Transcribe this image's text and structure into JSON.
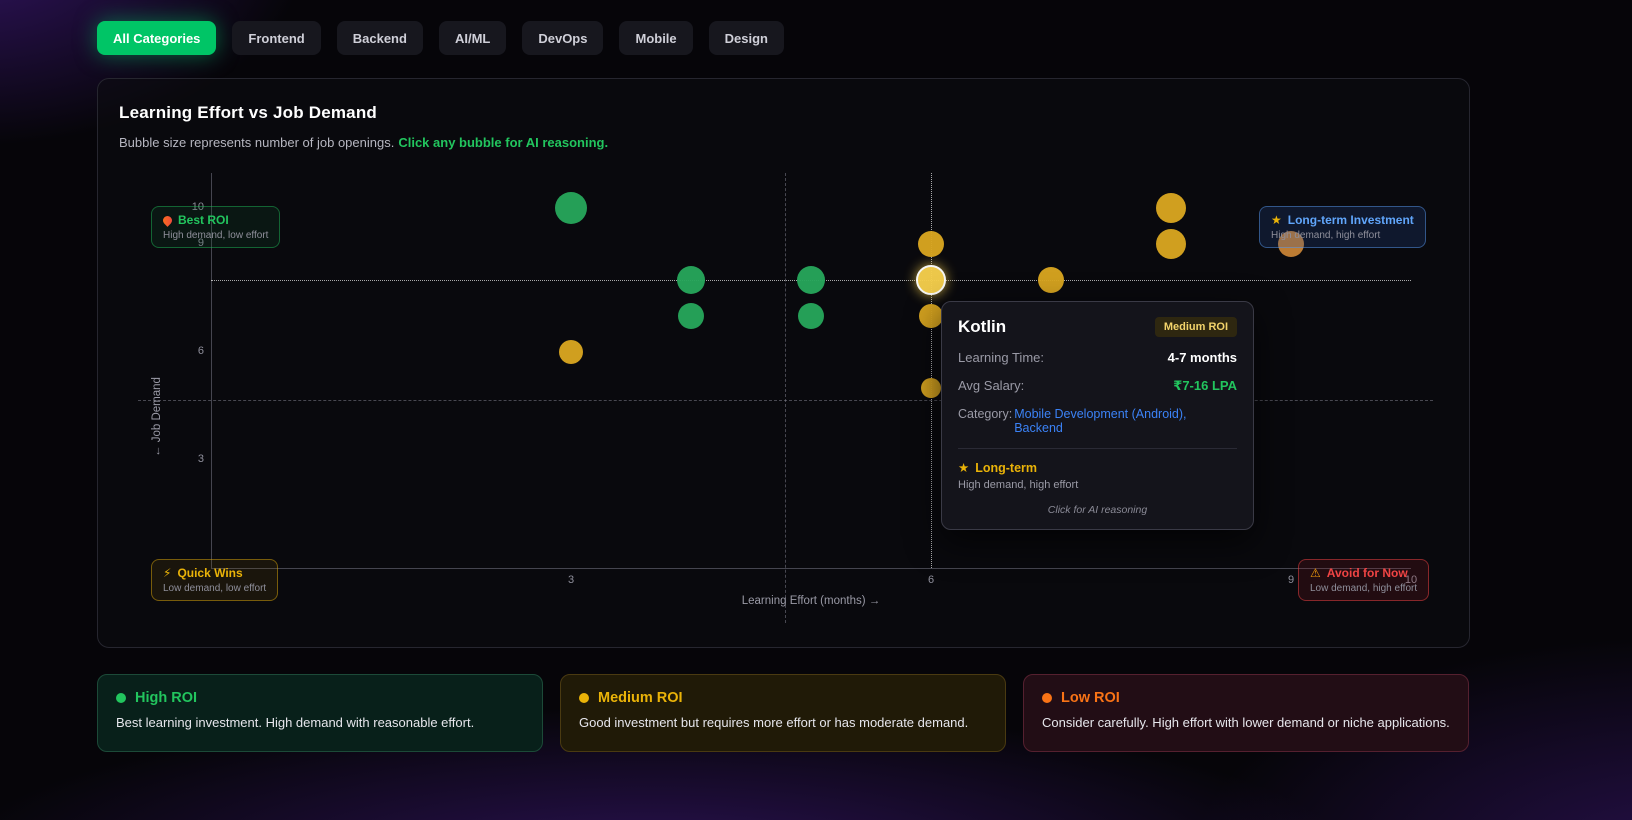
{
  "filters": {
    "items": [
      {
        "label": "All Categories",
        "active": true
      },
      {
        "label": "Frontend",
        "active": false
      },
      {
        "label": "Backend",
        "active": false
      },
      {
        "label": "AI/ML",
        "active": false
      },
      {
        "label": "DevOps",
        "active": false
      },
      {
        "label": "Mobile",
        "active": false
      },
      {
        "label": "Design",
        "active": false
      }
    ],
    "active_color": "#00c566"
  },
  "chart": {
    "title": "Learning Effort vs Job Demand",
    "subtitle": "Bubble size represents number of job openings.",
    "subtitle_highlight": "Click any bubble for AI reasoning.",
    "quadrants": {
      "best": {
        "icon": "flame",
        "title": "Best ROI",
        "subtitle": "High demand, low effort",
        "color": "#22c55e"
      },
      "longterm": {
        "icon": "star",
        "title": "Long-term Investment",
        "subtitle": "High demand, high effort",
        "color": "#60a5fa"
      },
      "quick": {
        "icon": "bolt",
        "title": "Quick Wins",
        "subtitle": "Low demand, low effort",
        "color": "#eab308"
      },
      "avoid": {
        "icon": "warning",
        "title": "Avoid for Now",
        "subtitle": "Low demand, high effort",
        "color": "#ef4444"
      }
    },
    "tooltip": {
      "title": "Kotlin",
      "badge": "Medium ROI",
      "rows": [
        {
          "label": "Learning Time:",
          "value": "4-7 months",
          "color": "#ffffff",
          "split": true
        },
        {
          "label": "Avg Salary:",
          "value": "₹7-16 LPA",
          "color": "#22c55e",
          "split": true
        },
        {
          "label": "Category:",
          "value": "Mobile Development (Android), Backend",
          "color": "#3b82f6",
          "split": false
        }
      ],
      "verdict_icon": "star",
      "verdict": "Long-term",
      "verdict_sub": "High demand, high effort",
      "footer": "Click for AI reasoning"
    }
  },
  "chart_data": {
    "type": "bubble",
    "xlabel": "Learning Effort (months) →",
    "ylabel": "← Job Demand",
    "xlim": [
      0,
      10
    ],
    "ylim": [
      0,
      11
    ],
    "x_ticks": [
      3,
      6,
      9,
      10
    ],
    "y_ticks": [
      3,
      6,
      9,
      10
    ],
    "grid": false,
    "quadrant_divider": {
      "x": 4.78,
      "y": 4.67
    },
    "crosshair": {
      "x": 6,
      "y": 8
    },
    "colors": {
      "high": "#26a65b",
      "medium": "#d9a520",
      "low": "#c58135",
      "highlight_fill": "#f6cf4d",
      "highlight_ring": "#ffffff"
    },
    "points": [
      {
        "x": 3,
        "y": 10,
        "r": 16,
        "roi": "high"
      },
      {
        "x": 4,
        "y": 8,
        "r": 14,
        "roi": "high"
      },
      {
        "x": 4,
        "y": 7,
        "r": 13,
        "roi": "high"
      },
      {
        "x": 5,
        "y": 8,
        "r": 14,
        "roi": "high"
      },
      {
        "x": 5,
        "y": 7,
        "r": 13,
        "roi": "high"
      },
      {
        "x": 3,
        "y": 6,
        "r": 12,
        "roi": "medium"
      },
      {
        "x": 6,
        "y": 9,
        "r": 13,
        "roi": "medium"
      },
      {
        "x": 6,
        "y": 8,
        "r": 15,
        "roi": "medium",
        "highlighted": true,
        "label": "Kotlin"
      },
      {
        "x": 6,
        "y": 7,
        "r": 12,
        "roi": "medium"
      },
      {
        "x": 6,
        "y": 5,
        "r": 10,
        "roi": "medium"
      },
      {
        "x": 7,
        "y": 8,
        "r": 13,
        "roi": "medium"
      },
      {
        "x": 8,
        "y": 10,
        "r": 15,
        "roi": "medium"
      },
      {
        "x": 8,
        "y": 9,
        "r": 15,
        "roi": "medium"
      },
      {
        "x": 9,
        "y": 9,
        "r": 13,
        "roi": "low"
      }
    ]
  },
  "legend": {
    "cards": [
      {
        "id": "high-roi",
        "title": "High ROI",
        "desc": "Best learning investment. High demand with reasonable effort.",
        "color": "#22c55e",
        "bg": "#08201a",
        "border": "#1c4a38"
      },
      {
        "id": "medium-roi",
        "title": "Medium ROI",
        "desc": "Good investment but requires more effort or has moderate demand.",
        "color": "#eab308",
        "bg": "#201a07",
        "border": "#4a3a11"
      },
      {
        "id": "low-roi",
        "title": "Low ROI",
        "desc": "Consider carefully. High effort with lower demand or niche applications.",
        "color": "#f97316",
        "bg": "#220d15",
        "border": "#55202f"
      }
    ]
  }
}
